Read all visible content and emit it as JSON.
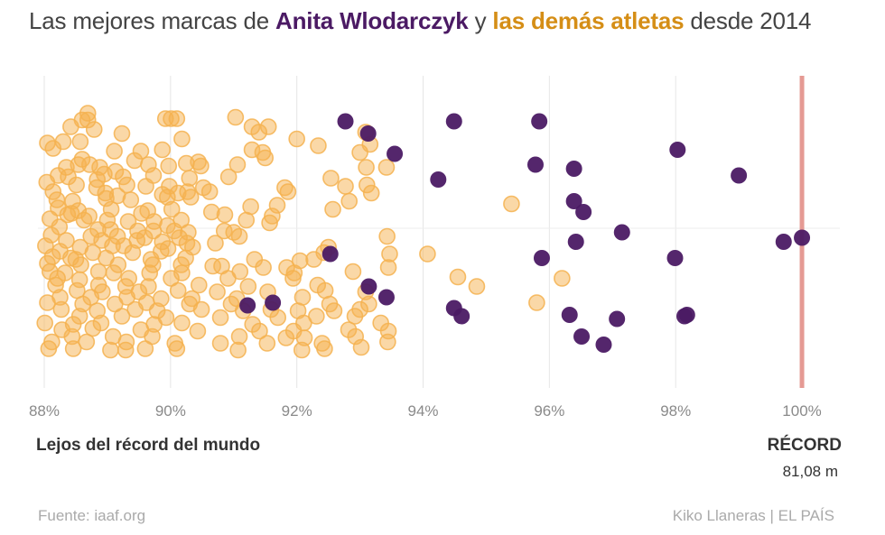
{
  "header": {
    "title_pre": "Las mejores marcas de ",
    "title_anita": "Anita Wlodarczyk",
    "title_mid": " y ",
    "title_others": "las demás atletas",
    "title_post": " desde 2014"
  },
  "footer": {
    "far_label": "Lejos del récord del mundo",
    "record_label": "RÉCORD",
    "record_value": "81,08 m",
    "source": "Fuente: iaaf.org",
    "credit": "Kiko Llaneras  |  EL PAÍS"
  },
  "colors": {
    "anita": "#4b1a64",
    "others": "#f5b14f",
    "record_line": "#e59a94"
  },
  "chart_data": {
    "type": "scatter",
    "title": "Las mejores marcas de Anita Wlodarczyk y las demás atletas desde 2014",
    "xlabel": "Lejos del récord del mundo",
    "x_unit": "% del récord del mundo (81,08 m)",
    "xlim": [
      87.9,
      100.6
    ],
    "x_ticks": [
      88,
      90,
      92,
      94,
      96,
      98,
      100
    ],
    "x_tick_labels": [
      "88%",
      "90%",
      "92%",
      "94%",
      "96%",
      "98%",
      "100%"
    ],
    "y_note": "vertical jitter only (no meaning)",
    "ylim": [
      -1,
      1
    ],
    "record": {
      "x": 100,
      "label": "RÉCORD",
      "value": "81,08 m"
    },
    "series": [
      {
        "name": "Anita Wlodarczyk",
        "points": [
          [
            92.77,
            -0.79
          ],
          [
            93.13,
            -0.7
          ],
          [
            94.49,
            -0.79
          ],
          [
            95.84,
            -0.79
          ],
          [
            93.55,
            -0.55
          ],
          [
            98.03,
            -0.58
          ],
          [
            95.78,
            -0.47
          ],
          [
            96.39,
            -0.44
          ],
          [
            94.24,
            -0.36
          ],
          [
            99.0,
            -0.39
          ],
          [
            96.39,
            -0.2
          ],
          [
            96.54,
            -0.12
          ],
          [
            100.0,
            0.07
          ],
          [
            97.15,
            0.03
          ],
          [
            96.42,
            0.1
          ],
          [
            99.71,
            0.1
          ],
          [
            92.53,
            0.19
          ],
          [
            95.88,
            0.22
          ],
          [
            97.99,
            0.22
          ],
          [
            93.14,
            0.43
          ],
          [
            93.42,
            0.51
          ],
          [
            91.22,
            0.57
          ],
          [
            91.62,
            0.55
          ],
          [
            94.49,
            0.59
          ],
          [
            94.61,
            0.65
          ],
          [
            96.32,
            0.64
          ],
          [
            97.07,
            0.67
          ],
          [
            98.14,
            0.65
          ],
          [
            98.18,
            0.64
          ],
          [
            96.51,
            0.8
          ],
          [
            96.86,
            0.86
          ]
        ]
      },
      {
        "name": "las demás atletas",
        "points": [
          [
            88.69,
            -0.85
          ],
          [
            88.69,
            -0.8
          ],
          [
            90.01,
            -0.81
          ],
          [
            90.1,
            -0.81
          ],
          [
            89.92,
            -0.81
          ],
          [
            91.03,
            -0.82
          ],
          [
            88.6,
            -0.8
          ],
          [
            88.42,
            -0.75
          ],
          [
            91.29,
            -0.75
          ],
          [
            91.55,
            -0.75
          ],
          [
            88.79,
            -0.73
          ],
          [
            89.23,
            -0.7
          ],
          [
            91.4,
            -0.71
          ],
          [
            93.09,
            -0.71
          ],
          [
            90.18,
            -0.66
          ],
          [
            92.0,
            -0.66
          ],
          [
            92.34,
            -0.61
          ],
          [
            93.16,
            -0.62
          ],
          [
            88.05,
            -0.63
          ],
          [
            88.3,
            -0.64
          ],
          [
            88.57,
            -0.64
          ],
          [
            88.14,
            -0.59
          ],
          [
            89.11,
            -0.57
          ],
          [
            89.53,
            -0.57
          ],
          [
            89.87,
            -0.58
          ],
          [
            91.29,
            -0.58
          ],
          [
            91.46,
            -0.56
          ],
          [
            93.0,
            -0.56
          ],
          [
            91.5,
            -0.52
          ],
          [
            90.44,
            -0.49
          ],
          [
            90.48,
            -0.46
          ],
          [
            89.43,
            -0.5
          ],
          [
            88.72,
            -0.47
          ],
          [
            88.88,
            -0.45
          ],
          [
            88.35,
            -0.45
          ],
          [
            88.54,
            -0.47
          ],
          [
            88.6,
            -0.51
          ],
          [
            89.65,
            -0.47
          ],
          [
            89.97,
            -0.46
          ],
          [
            90.25,
            -0.48
          ],
          [
            91.06,
            -0.47
          ],
          [
            93.1,
            -0.45
          ],
          [
            93.42,
            -0.45
          ],
          [
            89.13,
            -0.42
          ],
          [
            88.95,
            -0.4
          ],
          [
            88.22,
            -0.39
          ],
          [
            88.38,
            -0.38
          ],
          [
            88.84,
            -0.36
          ],
          [
            89.25,
            -0.38
          ],
          [
            89.73,
            -0.39
          ],
          [
            90.3,
            -0.37
          ],
          [
            90.92,
            -0.38
          ],
          [
            92.54,
            -0.37
          ],
          [
            88.04,
            -0.34
          ],
          [
            88.51,
            -0.32
          ],
          [
            88.83,
            -0.3
          ],
          [
            89.31,
            -0.32
          ],
          [
            89.61,
            -0.31
          ],
          [
            89.98,
            -0.31
          ],
          [
            90.52,
            -0.3
          ],
          [
            91.81,
            -0.3
          ],
          [
            92.77,
            -0.31
          ],
          [
            93.11,
            -0.32
          ],
          [
            88.14,
            -0.27
          ],
          [
            88.97,
            -0.26
          ],
          [
            89.16,
            -0.24
          ],
          [
            89.87,
            -0.25
          ],
          [
            90.12,
            -0.26
          ],
          [
            90.27,
            -0.27
          ],
          [
            90.62,
            -0.27
          ],
          [
            91.86,
            -0.27
          ],
          [
            93.18,
            -0.26
          ],
          [
            88.2,
            -0.21
          ],
          [
            88.45,
            -0.2
          ],
          [
            88.98,
            -0.22
          ],
          [
            89.37,
            -0.21
          ],
          [
            89.95,
            -0.23
          ],
          [
            90.32,
            -0.23
          ],
          [
            92.83,
            -0.2
          ],
          [
            95.4,
            -0.18
          ],
          [
            91.69,
            -0.17
          ],
          [
            91.27,
            -0.16
          ],
          [
            92.57,
            -0.14
          ],
          [
            88.22,
            -0.15
          ],
          [
            88.54,
            -0.13
          ],
          [
            89.06,
            -0.14
          ],
          [
            89.64,
            -0.13
          ],
          [
            90.02,
            -0.14
          ],
          [
            90.65,
            -0.12
          ],
          [
            88.43,
            -0.11
          ],
          [
            88.37,
            -0.1
          ],
          [
            88.71,
            -0.09
          ],
          [
            89.54,
            -0.11
          ],
          [
            90.86,
            -0.1
          ],
          [
            91.61,
            -0.09
          ],
          [
            88.09,
            -0.07
          ],
          [
            88.63,
            -0.06
          ],
          [
            89.0,
            -0.06
          ],
          [
            89.33,
            -0.05
          ],
          [
            89.74,
            -0.05
          ],
          [
            90.17,
            -0.06
          ],
          [
            91.2,
            -0.06
          ],
          [
            91.57,
            -0.04
          ],
          [
            89.95,
            -0.02
          ],
          [
            88.24,
            -0.01
          ],
          [
            88.85,
            0.01
          ],
          [
            89.05,
            0.01
          ],
          [
            89.48,
            0.02
          ],
          [
            89.73,
            0.02
          ],
          [
            90.06,
            0.02
          ],
          [
            90.28,
            0.03
          ],
          [
            90.85,
            0.02
          ],
          [
            91.0,
            0.03
          ],
          [
            88.11,
            0.05
          ],
          [
            88.74,
            0.06
          ],
          [
            89.16,
            0.06
          ],
          [
            89.59,
            0.07
          ],
          [
            90.14,
            0.07
          ],
          [
            91.09,
            0.06
          ],
          [
            93.43,
            0.06
          ],
          [
            88.35,
            0.09
          ],
          [
            88.91,
            0.09
          ],
          [
            89.47,
            0.09
          ],
          [
            89.87,
            0.1
          ],
          [
            90.26,
            0.11
          ],
          [
            90.71,
            0.11
          ],
          [
            88.02,
            0.13
          ],
          [
            88.57,
            0.14
          ],
          [
            89.08,
            0.13
          ],
          [
            89.26,
            0.13
          ],
          [
            89.96,
            0.15
          ],
          [
            90.35,
            0.14
          ],
          [
            92.5,
            0.14
          ],
          [
            88.25,
            0.17
          ],
          [
            88.77,
            0.18
          ],
          [
            89.4,
            0.18
          ],
          [
            89.85,
            0.17
          ],
          [
            92.43,
            0.18
          ],
          [
            93.47,
            0.19
          ],
          [
            94.07,
            0.19
          ],
          [
            88.13,
            0.21
          ],
          [
            88.42,
            0.22
          ],
          [
            88.5,
            0.23
          ],
          [
            88.98,
            0.22
          ],
          [
            89.69,
            0.23
          ],
          [
            90.24,
            0.22
          ],
          [
            91.33,
            0.23
          ],
          [
            92.05,
            0.24
          ],
          [
            92.27,
            0.23
          ],
          [
            88.05,
            0.26
          ],
          [
            88.58,
            0.27
          ],
          [
            89.17,
            0.27
          ],
          [
            89.72,
            0.27
          ],
          [
            90.17,
            0.27
          ],
          [
            90.67,
            0.28
          ],
          [
            90.81,
            0.28
          ],
          [
            91.47,
            0.29
          ],
          [
            91.84,
            0.29
          ],
          [
            93.45,
            0.29
          ],
          [
            88.09,
            0.32
          ],
          [
            88.33,
            0.33
          ],
          [
            88.86,
            0.32
          ],
          [
            89.1,
            0.33
          ],
          [
            89.67,
            0.33
          ],
          [
            90.18,
            0.33
          ],
          [
            91.1,
            0.32
          ],
          [
            91.96,
            0.33
          ],
          [
            92.89,
            0.32
          ],
          [
            94.55,
            0.36
          ],
          [
            88.21,
            0.37
          ],
          [
            88.56,
            0.38
          ],
          [
            89.34,
            0.37
          ],
          [
            90.01,
            0.37
          ],
          [
            90.91,
            0.37
          ],
          [
            91.94,
            0.37
          ],
          [
            96.2,
            0.37
          ],
          [
            88.18,
            0.42
          ],
          [
            88.86,
            0.42
          ],
          [
            89.29,
            0.43
          ],
          [
            89.65,
            0.43
          ],
          [
            90.45,
            0.42
          ],
          [
            91.23,
            0.43
          ],
          [
            92.33,
            0.42
          ],
          [
            94.85,
            0.43
          ],
          [
            88.52,
            0.46
          ],
          [
            88.92,
            0.47
          ],
          [
            89.5,
            0.47
          ],
          [
            90.12,
            0.46
          ],
          [
            90.74,
            0.47
          ],
          [
            91.54,
            0.47
          ],
          [
            92.45,
            0.46
          ],
          [
            93.09,
            0.47
          ],
          [
            88.25,
            0.51
          ],
          [
            88.74,
            0.51
          ],
          [
            89.31,
            0.51
          ],
          [
            89.85,
            0.52
          ],
          [
            90.34,
            0.52
          ],
          [
            91.05,
            0.52
          ],
          [
            92.09,
            0.51
          ],
          [
            88.05,
            0.55
          ],
          [
            88.61,
            0.56
          ],
          [
            89.12,
            0.56
          ],
          [
            89.62,
            0.55
          ],
          [
            90.3,
            0.56
          ],
          [
            90.96,
            0.56
          ],
          [
            92.52,
            0.56
          ],
          [
            93.14,
            0.56
          ],
          [
            95.8,
            0.55
          ],
          [
            88.27,
            0.6
          ],
          [
            88.84,
            0.61
          ],
          [
            89.44,
            0.6
          ],
          [
            89.79,
            0.61
          ],
          [
            90.49,
            0.6
          ],
          [
            91.15,
            0.61
          ],
          [
            91.59,
            0.6
          ],
          [
            92.02,
            0.61
          ],
          [
            92.59,
            0.61
          ],
          [
            93.0,
            0.6
          ],
          [
            88.56,
            0.65
          ],
          [
            89.23,
            0.65
          ],
          [
            89.93,
            0.66
          ],
          [
            90.79,
            0.66
          ],
          [
            91.7,
            0.66
          ],
          [
            92.31,
            0.65
          ],
          [
            92.92,
            0.65
          ],
          [
            88.01,
            0.7
          ],
          [
            88.46,
            0.71
          ],
          [
            88.9,
            0.7
          ],
          [
            89.74,
            0.71
          ],
          [
            90.18,
            0.7
          ],
          [
            91.3,
            0.71
          ],
          [
            92.11,
            0.7
          ],
          [
            93.33,
            0.7
          ],
          [
            88.28,
            0.75
          ],
          [
            88.77,
            0.74
          ],
          [
            89.53,
            0.75
          ],
          [
            90.43,
            0.76
          ],
          [
            91.41,
            0.76
          ],
          [
            91.95,
            0.76
          ],
          [
            92.82,
            0.75
          ],
          [
            93.45,
            0.76
          ],
          [
            88.44,
            0.8
          ],
          [
            89.09,
            0.8
          ],
          [
            89.71,
            0.8
          ],
          [
            91.09,
            0.8
          ],
          [
            91.83,
            0.81
          ],
          [
            92.12,
            0.81
          ],
          [
            92.93,
            0.8
          ],
          [
            88.12,
            0.84
          ],
          [
            88.67,
            0.84
          ],
          [
            89.3,
            0.84
          ],
          [
            90.07,
            0.85
          ],
          [
            90.79,
            0.85
          ],
          [
            91.53,
            0.85
          ],
          [
            92.4,
            0.85
          ],
          [
            93.44,
            0.84
          ],
          [
            88.07,
            0.89
          ],
          [
            88.46,
            0.89
          ],
          [
            89.05,
            0.9
          ],
          [
            89.29,
            0.9
          ],
          [
            89.6,
            0.89
          ],
          [
            90.1,
            0.89
          ],
          [
            91.07,
            0.9
          ],
          [
            92.08,
            0.9
          ],
          [
            92.44,
            0.89
          ],
          [
            93.02,
            0.88
          ]
        ]
      }
    ]
  }
}
